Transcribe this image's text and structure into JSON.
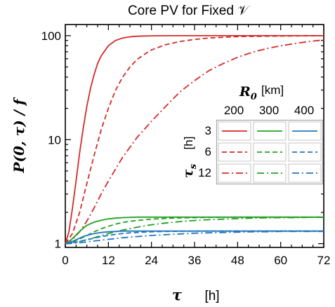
{
  "chart_data": {
    "type": "line",
    "title": "Core PV for Fixed 𝒱",
    "xlabel": "τ",
    "xunit": "[h]",
    "ylabel": "P(0, τ) / f",
    "x_ticks": [
      "0",
      "12",
      "24",
      "36",
      "48",
      "60",
      "72"
    ],
    "y_ticks": [
      "1",
      "10",
      "100"
    ],
    "xlim": [
      0,
      72
    ],
    "ylim": [
      0.92,
      128
    ],
    "yscale": "log",
    "grid": false,
    "legend": {
      "placement": "right-center",
      "column_header": "R",
      "column_header_sub": "0",
      "column_unit": "[km]",
      "columns": [
        "200",
        "300",
        "400"
      ],
      "row_header": "τ",
      "row_header_sub": "s",
      "row_unit": "[h]",
      "rows": [
        "3",
        "6",
        "12"
      ]
    },
    "colors": {
      "200": "#d42a2a",
      "300": "#22a022",
      "400": "#2277c0"
    },
    "series": [
      {
        "R0": "200",
        "tau_s": "3",
        "style": "solid",
        "x": [
          0,
          1,
          2,
          3,
          4,
          5,
          6,
          7,
          8,
          9,
          10,
          12,
          14,
          16,
          18,
          20,
          24,
          30,
          36,
          48,
          60,
          72
        ],
        "y": [
          1.0,
          1.3,
          2.2,
          4.0,
          7.5,
          13,
          21,
          31,
          42,
          54,
          64,
          80,
          90,
          95,
          97.5,
          98.8,
          99.7,
          100,
          100,
          100,
          100,
          100
        ]
      },
      {
        "R0": "200",
        "tau_s": "6",
        "style": "dashed",
        "x": [
          0,
          2,
          4,
          6,
          8,
          10,
          12,
          14,
          16,
          18,
          20,
          22,
          24,
          28,
          32,
          36,
          40,
          48,
          56,
          64,
          72
        ],
        "y": [
          1.0,
          1.25,
          2.0,
          3.8,
          7.0,
          12.5,
          20,
          30,
          40,
          50,
          59,
          66,
          73,
          82,
          88,
          92,
          95,
          98,
          99,
          99.6,
          100
        ]
      },
      {
        "R0": "200",
        "tau_s": "12",
        "style": "dashdot",
        "x": [
          0,
          2,
          4,
          6,
          8,
          10,
          12,
          16,
          20,
          24,
          28,
          32,
          36,
          40,
          44,
          48,
          52,
          56,
          60,
          64,
          68,
          72
        ],
        "y": [
          1.0,
          1.1,
          1.3,
          1.65,
          2.2,
          3.0,
          4.0,
          6.8,
          10.5,
          15,
          21,
          29,
          37,
          46,
          54,
          62,
          69,
          75,
          80,
          84,
          88,
          91
        ]
      },
      {
        "R0": "300",
        "tau_s": "3",
        "style": "solid",
        "x": [
          0,
          1,
          2,
          3,
          4,
          5,
          6,
          8,
          10,
          12,
          14,
          16,
          18,
          20,
          24,
          30,
          36,
          48,
          60,
          72
        ],
        "y": [
          1.0,
          1.05,
          1.12,
          1.21,
          1.31,
          1.41,
          1.5,
          1.61,
          1.68,
          1.73,
          1.76,
          1.78,
          1.79,
          1.8,
          1.8,
          1.8,
          1.8,
          1.8,
          1.8,
          1.8
        ]
      },
      {
        "R0": "300",
        "tau_s": "6",
        "style": "dashed",
        "x": [
          0,
          2,
          4,
          6,
          8,
          10,
          12,
          14,
          16,
          18,
          20,
          24,
          28,
          32,
          36,
          40,
          48,
          60,
          72
        ],
        "y": [
          1.0,
          1.04,
          1.11,
          1.2,
          1.3,
          1.39,
          1.47,
          1.54,
          1.6,
          1.64,
          1.67,
          1.72,
          1.75,
          1.77,
          1.78,
          1.79,
          1.8,
          1.8,
          1.8
        ]
      },
      {
        "R0": "300",
        "tau_s": "12",
        "style": "dashdot",
        "x": [
          0,
          4,
          8,
          12,
          16,
          20,
          24,
          28,
          32,
          36,
          40,
          44,
          48,
          52,
          56,
          60,
          64,
          68,
          72
        ],
        "y": [
          1.0,
          1.05,
          1.14,
          1.25,
          1.35,
          1.44,
          1.52,
          1.58,
          1.63,
          1.67,
          1.7,
          1.72,
          1.74,
          1.76,
          1.77,
          1.78,
          1.78,
          1.79,
          1.79
        ]
      },
      {
        "R0": "400",
        "tau_s": "3",
        "style": "solid",
        "x": [
          0,
          1,
          2,
          3,
          4,
          5,
          6,
          8,
          10,
          12,
          14,
          16,
          18,
          20,
          24,
          30,
          36,
          48,
          60,
          72
        ],
        "y": [
          1.0,
          1.02,
          1.05,
          1.09,
          1.13,
          1.17,
          1.2,
          1.25,
          1.28,
          1.3,
          1.31,
          1.32,
          1.32,
          1.32,
          1.32,
          1.32,
          1.32,
          1.32,
          1.32,
          1.32
        ]
      },
      {
        "R0": "400",
        "tau_s": "6",
        "style": "dashed",
        "x": [
          0,
          2,
          4,
          6,
          8,
          10,
          12,
          14,
          16,
          18,
          20,
          24,
          28,
          32,
          36,
          40,
          48,
          60,
          72
        ],
        "y": [
          1.0,
          1.02,
          1.05,
          1.09,
          1.13,
          1.17,
          1.2,
          1.23,
          1.25,
          1.27,
          1.28,
          1.3,
          1.31,
          1.315,
          1.32,
          1.32,
          1.32,
          1.32,
          1.32
        ]
      },
      {
        "R0": "400",
        "tau_s": "12",
        "style": "dashdot",
        "x": [
          0,
          4,
          8,
          12,
          16,
          20,
          24,
          28,
          32,
          36,
          40,
          44,
          48,
          52,
          56,
          60,
          64,
          68,
          72
        ],
        "y": [
          1.0,
          1.02,
          1.06,
          1.1,
          1.14,
          1.17,
          1.2,
          1.22,
          1.24,
          1.26,
          1.27,
          1.28,
          1.29,
          1.3,
          1.3,
          1.31,
          1.31,
          1.31,
          1.31
        ]
      }
    ]
  }
}
